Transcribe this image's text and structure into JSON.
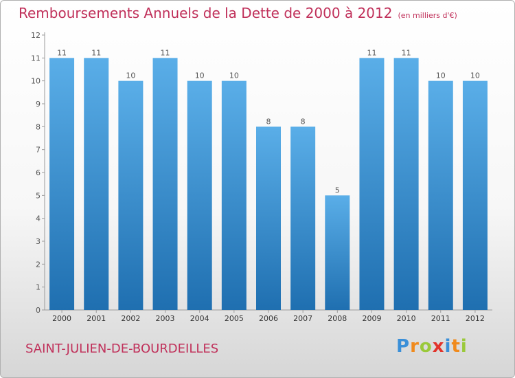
{
  "title": "Remboursements Annuels de la Dette de 2000 à 2012",
  "unit": "(en milliers d'€)",
  "commune": "SAINT-JULIEN-DE-BOURDEILLES",
  "logo": {
    "letters": [
      "P",
      "r",
      "o",
      "x",
      "i",
      "t",
      "i"
    ],
    "colors": [
      "#3a8fd8",
      "#f08a1c",
      "#9ac93a",
      "#e2332a",
      "#3a8fd8",
      "#f08a1c",
      "#9ac93a"
    ]
  },
  "colors": {
    "bar_top": "#5aaee8",
    "bar_bottom": "#1f6fb0",
    "accent": "#c0305a"
  },
  "chart_data": {
    "type": "bar",
    "categories": [
      "2000",
      "2001",
      "2002",
      "2003",
      "2004",
      "2005",
      "2006",
      "2007",
      "2008",
      "2009",
      "2010",
      "2011",
      "2012"
    ],
    "values": [
      11,
      11,
      10,
      11,
      10,
      10,
      8,
      8,
      5,
      11,
      11,
      10,
      10
    ],
    "ylim": [
      0,
      12
    ],
    "yticks": [
      "0",
      "1",
      "2",
      "3",
      "4",
      "5",
      "6",
      "7",
      "8",
      "9",
      "10",
      "11",
      "12"
    ],
    "xlabel": "",
    "ylabel": "",
    "grid": false,
    "data_labels": [
      "11",
      "11",
      "10",
      "11",
      "10",
      "10",
      "8",
      "8",
      "5",
      "11",
      "11",
      "10",
      "10"
    ]
  }
}
